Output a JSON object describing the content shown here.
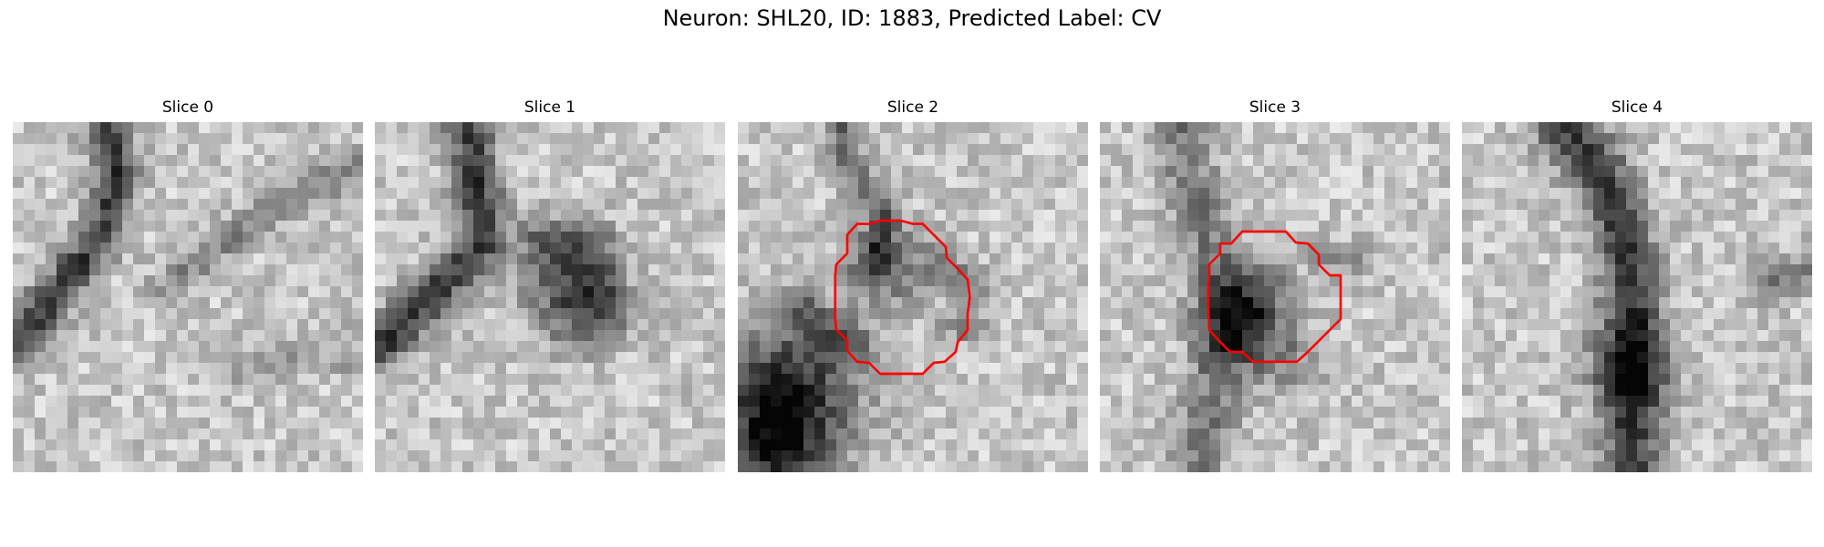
{
  "figure": {
    "title": "Neuron: SHL20, ID: 1883, Predicted Label: CV",
    "contour_color": "#ff0000"
  },
  "panels": [
    {
      "title": "Slice 0",
      "has_contour": false
    },
    {
      "title": "Slice 1",
      "has_contour": false
    },
    {
      "title": "Slice 2",
      "has_contour": true
    },
    {
      "title": "Slice 3",
      "has_contour": true
    },
    {
      "title": "Slice 4",
      "has_contour": false
    }
  ]
}
